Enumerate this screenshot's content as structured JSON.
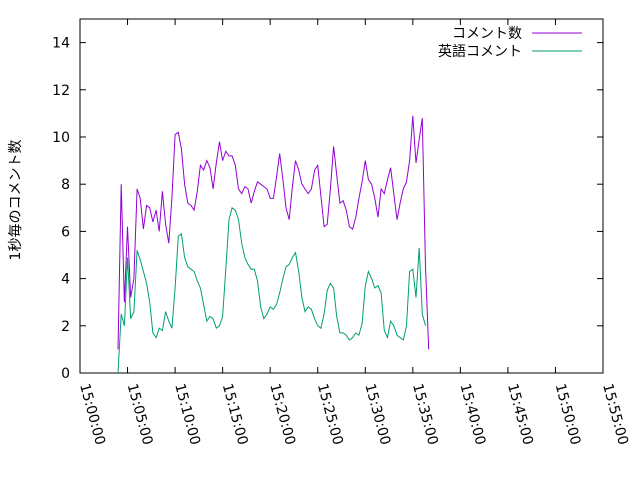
{
  "chart_data": {
    "type": "line",
    "title": "",
    "xlabel": "",
    "ylabel": "1秒毎のコメント数",
    "xlim": [
      "15:00:00",
      "15:55:00"
    ],
    "ylim": [
      0,
      15
    ],
    "x_ticks": [
      "15:00:00",
      "15:05:00",
      "15:10:00",
      "15:15:00",
      "15:20:00",
      "15:25:00",
      "15:30:00",
      "15:35:00",
      "15:40:00",
      "15:45:00",
      "15:50:00",
      "15:55:00"
    ],
    "y_ticks": [
      0,
      2,
      4,
      6,
      8,
      10,
      12,
      14
    ],
    "grid": false,
    "legend_position": "top-right",
    "series": [
      {
        "name": "コメント数",
        "color": "#9400d3",
        "points": [
          [
            "15:04:00",
            1.0
          ],
          [
            "15:04:20",
            8.0
          ],
          [
            "15:04:40",
            3.0
          ],
          [
            "15:05:00",
            6.2
          ],
          [
            "15:05:20",
            3.2
          ],
          [
            "15:05:40",
            4.0
          ],
          [
            "15:06:00",
            7.8
          ],
          [
            "15:06:20",
            7.4
          ],
          [
            "15:06:40",
            6.1
          ],
          [
            "15:07:00",
            7.1
          ],
          [
            "15:07:20",
            7.0
          ],
          [
            "15:07:40",
            6.4
          ],
          [
            "15:08:00",
            6.9
          ],
          [
            "15:08:20",
            6.0
          ],
          [
            "15:08:40",
            7.7
          ],
          [
            "15:09:00",
            6.3
          ],
          [
            "15:09:20",
            5.5
          ],
          [
            "15:09:40",
            7.4
          ],
          [
            "15:10:00",
            10.1
          ],
          [
            "15:10:20",
            10.2
          ],
          [
            "15:10:40",
            9.5
          ],
          [
            "15:11:00",
            8.0
          ],
          [
            "15:11:20",
            7.2
          ],
          [
            "15:11:40",
            7.1
          ],
          [
            "15:12:00",
            6.9
          ],
          [
            "15:12:20",
            7.7
          ],
          [
            "15:12:40",
            8.8
          ],
          [
            "15:13:00",
            8.6
          ],
          [
            "15:13:20",
            9.0
          ],
          [
            "15:13:40",
            8.7
          ],
          [
            "15:14:00",
            7.8
          ],
          [
            "15:14:20",
            8.9
          ],
          [
            "15:14:40",
            9.8
          ],
          [
            "15:15:00",
            9.0
          ],
          [
            "15:15:20",
            9.4
          ],
          [
            "15:15:40",
            9.2
          ],
          [
            "15:16:00",
            9.2
          ],
          [
            "15:16:20",
            8.8
          ],
          [
            "15:16:40",
            7.8
          ],
          [
            "15:17:00",
            7.6
          ],
          [
            "15:17:20",
            7.9
          ],
          [
            "15:17:40",
            7.8
          ],
          [
            "15:18:00",
            7.2
          ],
          [
            "15:18:20",
            7.7
          ],
          [
            "15:18:40",
            8.1
          ],
          [
            "15:19:00",
            8.0
          ],
          [
            "15:19:20",
            7.9
          ],
          [
            "15:19:40",
            7.8
          ],
          [
            "15:20:00",
            7.4
          ],
          [
            "15:20:20",
            7.4
          ],
          [
            "15:20:40",
            8.3
          ],
          [
            "15:21:00",
            9.3
          ],
          [
            "15:21:20",
            8.2
          ],
          [
            "15:21:40",
            7.0
          ],
          [
            "15:22:00",
            6.5
          ],
          [
            "15:22:20",
            7.9
          ],
          [
            "15:22:40",
            9.0
          ],
          [
            "15:23:00",
            8.6
          ],
          [
            "15:23:20",
            8.0
          ],
          [
            "15:23:40",
            7.8
          ],
          [
            "15:24:00",
            7.6
          ],
          [
            "15:24:20",
            7.8
          ],
          [
            "15:24:40",
            8.6
          ],
          [
            "15:25:00",
            8.8
          ],
          [
            "15:25:20",
            7.5
          ],
          [
            "15:25:40",
            6.2
          ],
          [
            "15:26:00",
            6.3
          ],
          [
            "15:26:20",
            7.8
          ],
          [
            "15:26:40",
            9.6
          ],
          [
            "15:27:00",
            8.4
          ],
          [
            "15:27:20",
            7.2
          ],
          [
            "15:27:40",
            7.3
          ],
          [
            "15:28:00",
            6.9
          ],
          [
            "15:28:20",
            6.2
          ],
          [
            "15:28:40",
            6.1
          ],
          [
            "15:29:00",
            6.6
          ],
          [
            "15:29:20",
            7.4
          ],
          [
            "15:29:40",
            8.1
          ],
          [
            "15:30:00",
            9.0
          ],
          [
            "15:30:20",
            8.2
          ],
          [
            "15:30:40",
            8.0
          ],
          [
            "15:31:00",
            7.4
          ],
          [
            "15:31:20",
            6.6
          ],
          [
            "15:31:40",
            7.8
          ],
          [
            "15:32:00",
            7.6
          ],
          [
            "15:32:20",
            8.2
          ],
          [
            "15:32:40",
            8.7
          ],
          [
            "15:33:00",
            7.6
          ],
          [
            "15:33:20",
            6.5
          ],
          [
            "15:33:40",
            7.2
          ],
          [
            "15:34:00",
            7.8
          ],
          [
            "15:34:20",
            8.1
          ],
          [
            "15:34:40",
            9.0
          ],
          [
            "15:35:00",
            10.9
          ],
          [
            "15:35:20",
            8.9
          ],
          [
            "15:35:40",
            9.9
          ],
          [
            "15:36:00",
            10.8
          ],
          [
            "15:36:20",
            4.5
          ],
          [
            "15:36:40",
            1.0
          ]
        ]
      },
      {
        "name": "英語コメント",
        "color": "#009e73",
        "points": [
          [
            "15:04:00",
            0.0
          ],
          [
            "15:04:20",
            2.5
          ],
          [
            "15:04:40",
            2.0
          ],
          [
            "15:05:00",
            4.9
          ],
          [
            "15:05:20",
            2.3
          ],
          [
            "15:05:40",
            2.6
          ],
          [
            "15:06:00",
            5.2
          ],
          [
            "15:06:20",
            4.8
          ],
          [
            "15:06:40",
            4.3
          ],
          [
            "15:07:00",
            3.8
          ],
          [
            "15:07:20",
            3.0
          ],
          [
            "15:07:40",
            1.7
          ],
          [
            "15:08:00",
            1.5
          ],
          [
            "15:08:20",
            1.9
          ],
          [
            "15:08:40",
            1.8
          ],
          [
            "15:09:00",
            2.6
          ],
          [
            "15:09:20",
            2.2
          ],
          [
            "15:09:40",
            1.9
          ],
          [
            "15:10:00",
            3.6
          ],
          [
            "15:10:20",
            5.8
          ],
          [
            "15:10:40",
            5.9
          ],
          [
            "15:11:00",
            4.9
          ],
          [
            "15:11:20",
            4.5
          ],
          [
            "15:11:40",
            4.4
          ],
          [
            "15:12:00",
            4.3
          ],
          [
            "15:12:20",
            3.9
          ],
          [
            "15:12:40",
            3.6
          ],
          [
            "15:13:00",
            2.9
          ],
          [
            "15:13:20",
            2.2
          ],
          [
            "15:13:40",
            2.4
          ],
          [
            "15:14:00",
            2.3
          ],
          [
            "15:14:20",
            1.9
          ],
          [
            "15:14:40",
            2.0
          ],
          [
            "15:15:00",
            2.4
          ],
          [
            "15:15:20",
            4.4
          ],
          [
            "15:15:40",
            6.5
          ],
          [
            "15:16:00",
            7.0
          ],
          [
            "15:16:20",
            6.9
          ],
          [
            "15:16:40",
            6.5
          ],
          [
            "15:17:00",
            5.5
          ],
          [
            "15:17:20",
            4.9
          ],
          [
            "15:17:40",
            4.6
          ],
          [
            "15:18:00",
            4.4
          ],
          [
            "15:18:20",
            4.4
          ],
          [
            "15:18:40",
            3.9
          ],
          [
            "15:19:00",
            2.8
          ],
          [
            "15:19:20",
            2.3
          ],
          [
            "15:19:40",
            2.5
          ],
          [
            "15:20:00",
            2.8
          ],
          [
            "15:20:20",
            2.7
          ],
          [
            "15:20:40",
            2.9
          ],
          [
            "15:21:00",
            3.4
          ],
          [
            "15:21:20",
            4.0
          ],
          [
            "15:21:40",
            4.5
          ],
          [
            "15:22:00",
            4.6
          ],
          [
            "15:22:20",
            4.9
          ],
          [
            "15:22:40",
            5.1
          ],
          [
            "15:23:00",
            4.3
          ],
          [
            "15:23:20",
            3.2
          ],
          [
            "15:23:40",
            2.6
          ],
          [
            "15:24:00",
            2.8
          ],
          [
            "15:24:20",
            2.7
          ],
          [
            "15:24:40",
            2.3
          ],
          [
            "15:25:00",
            2.0
          ],
          [
            "15:25:20",
            1.9
          ],
          [
            "15:25:40",
            2.5
          ],
          [
            "15:26:00",
            3.5
          ],
          [
            "15:26:20",
            3.8
          ],
          [
            "15:26:40",
            3.6
          ],
          [
            "15:27:00",
            2.4
          ],
          [
            "15:27:20",
            1.7
          ],
          [
            "15:27:40",
            1.7
          ],
          [
            "15:28:00",
            1.6
          ],
          [
            "15:28:20",
            1.4
          ],
          [
            "15:28:40",
            1.5
          ],
          [
            "15:29:00",
            1.7
          ],
          [
            "15:29:20",
            1.6
          ],
          [
            "15:29:40",
            2.1
          ],
          [
            "15:30:00",
            3.7
          ],
          [
            "15:30:20",
            4.3
          ],
          [
            "15:30:40",
            4.0
          ],
          [
            "15:31:00",
            3.6
          ],
          [
            "15:31:20",
            3.7
          ],
          [
            "15:31:40",
            3.4
          ],
          [
            "15:32:00",
            1.8
          ],
          [
            "15:32:20",
            1.5
          ],
          [
            "15:32:40",
            2.2
          ],
          [
            "15:33:00",
            2.0
          ],
          [
            "15:33:20",
            1.6
          ],
          [
            "15:33:40",
            1.5
          ],
          [
            "15:34:00",
            1.4
          ],
          [
            "15:34:20",
            2.0
          ],
          [
            "15:34:40",
            4.3
          ],
          [
            "15:35:00",
            4.4
          ],
          [
            "15:35:20",
            3.2
          ],
          [
            "15:35:40",
            5.3
          ],
          [
            "15:36:00",
            2.5
          ],
          [
            "15:36:20",
            2.0
          ]
        ]
      }
    ]
  }
}
